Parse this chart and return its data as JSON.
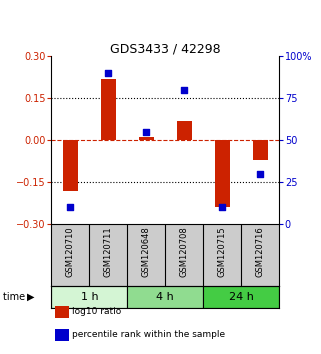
{
  "title": "GDS3433 / 42298",
  "categories": [
    "GSM120710",
    "GSM120711",
    "GSM120648",
    "GSM120708",
    "GSM120715",
    "GSM120716"
  ],
  "log10_ratio": [
    -0.18,
    0.22,
    0.01,
    0.07,
    -0.24,
    -0.07
  ],
  "percentile_rank": [
    10,
    90,
    55,
    80,
    10,
    30
  ],
  "bar_color": "#cc2200",
  "dot_color": "#0000cc",
  "ylim_left": [
    -0.3,
    0.3
  ],
  "ylim_right": [
    0,
    100
  ],
  "yticks_left": [
    -0.3,
    -0.15,
    0,
    0.15,
    0.3
  ],
  "yticks_right": [
    0,
    25,
    50,
    75,
    100
  ],
  "ytick_labels_right": [
    "0",
    "25",
    "50",
    "75",
    "100%"
  ],
  "hlines_dotted": [
    -0.15,
    0.15
  ],
  "hline_dashed": 0,
  "groups": [
    {
      "label": "1 h",
      "indices": [
        0,
        1
      ],
      "color": "#d4f5d4"
    },
    {
      "label": "4 h",
      "indices": [
        2,
        3
      ],
      "color": "#90dc90"
    },
    {
      "label": "24 h",
      "indices": [
        4,
        5
      ],
      "color": "#44cc44"
    }
  ],
  "legend_items": [
    {
      "color": "#cc2200",
      "label": "log10 ratio"
    },
    {
      "color": "#0000cc",
      "label": "percentile rank within the sample"
    }
  ],
  "bg_color": "#ffffff",
  "sample_box_color": "#cccccc"
}
